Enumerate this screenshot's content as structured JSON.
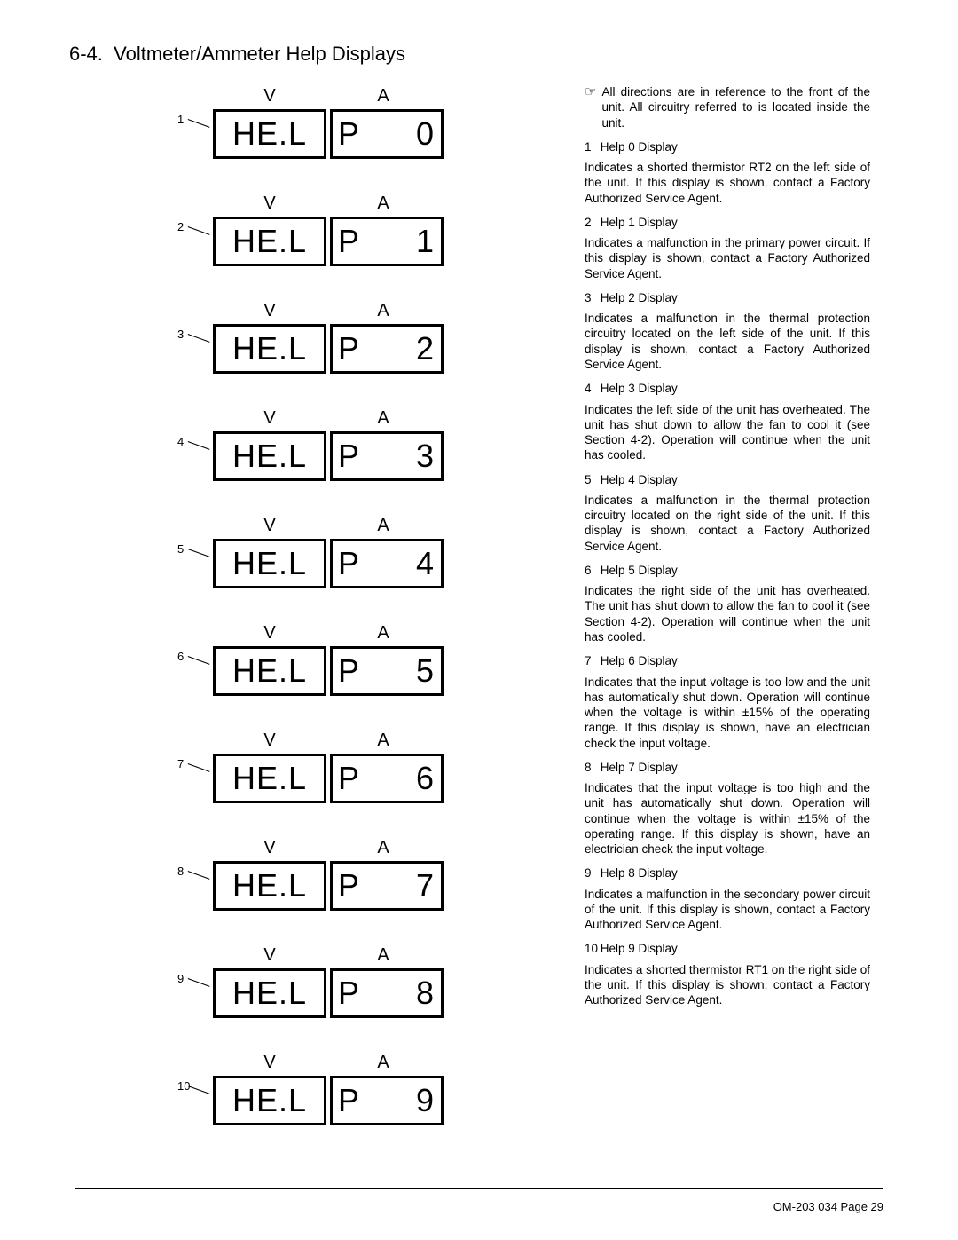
{
  "page": {
    "section_number": "6-4.",
    "section_title": "Voltmeter/Ammeter Help Displays",
    "footer": "OM-203 034 Page 29"
  },
  "display_labels": {
    "v": "V",
    "a": "A",
    "left_seg": "HE.L"
  },
  "displays": [
    {
      "idx": "1",
      "right": "P  0"
    },
    {
      "idx": "2",
      "right": "P  1"
    },
    {
      "idx": "3",
      "right": "P  2"
    },
    {
      "idx": "4",
      "right": "P  3"
    },
    {
      "idx": "5",
      "right": "P  4"
    },
    {
      "idx": "6",
      "right": "P  5"
    },
    {
      "idx": "7",
      "right": "P  6"
    },
    {
      "idx": "8",
      "right": "P  7"
    },
    {
      "idx": "9",
      "right": "P  8"
    },
    {
      "idx": "10",
      "right": "P  9"
    }
  ],
  "note": {
    "icon": "☞",
    "text": "All directions are in reference to the front of the unit. All circuitry referred to is located inside the unit."
  },
  "items": [
    {
      "n": "1",
      "title": "Help 0 Display",
      "body": "Indicates a shorted thermistor RT2 on the left side of the unit. If this display is shown, contact a Factory Authorized Service Agent."
    },
    {
      "n": "2",
      "title": "Help 1 Display",
      "body": "Indicates a malfunction in the primary power circuit. If this display is shown, contact a Factory Authorized Service Agent."
    },
    {
      "n": "3",
      "title": "Help 2 Display",
      "body": "Indicates a malfunction in the thermal protection circuitry located on the left side of the unit. If this display is shown, contact a Factory Authorized Service Agent."
    },
    {
      "n": "4",
      "title": "Help 3 Display",
      "body": "Indicates the left side of the unit has overheated. The unit has shut down to allow the fan to cool it (see Section 4-2). Operation will continue when the unit has cooled."
    },
    {
      "n": "5",
      "title": "Help 4 Display",
      "body": "Indicates a malfunction in the thermal protection circuitry located on the right side of the unit. If this display is shown, contact a Factory Authorized Service Agent."
    },
    {
      "n": "6",
      "title": "Help 5 Display",
      "body": "Indicates the right side of the unit has overheated. The unit has shut down to allow the fan to cool it (see Section 4-2). Operation will continue when the unit has cooled."
    },
    {
      "n": "7",
      "title": "Help 6 Display",
      "body": "Indicates that the input voltage is too low and the unit has automatically shut down. Operation will continue when the voltage is within ±15% of the operating range. If this display is shown, have an electrician check the input voltage."
    },
    {
      "n": "8",
      "title": "Help 7 Display",
      "body": "Indicates that the input voltage is too high and the unit has automatically shut down. Operation will continue when the voltage is within ±15% of the operating range. If this display is shown, have an electrician check the input voltage."
    },
    {
      "n": "9",
      "title": "Help 8 Display",
      "body": "Indicates a malfunction in the secondary power circuit of the unit. If this display is shown, contact a Factory Authorized Service Agent."
    },
    {
      "n": "10",
      "title": "Help 9 Display",
      "body": "Indicates a shorted thermistor RT1 on the right side of the unit. If this display is shown, contact a Factory Authorized Service Agent."
    }
  ]
}
